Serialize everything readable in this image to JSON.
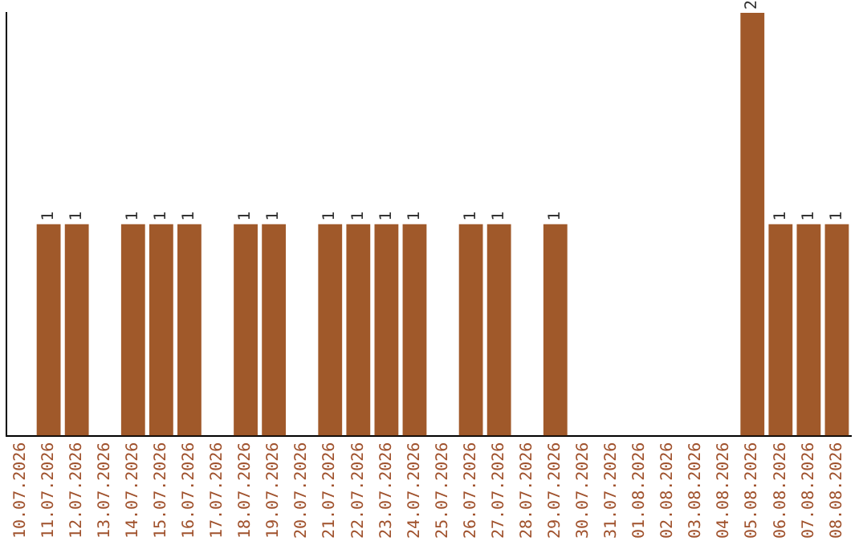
{
  "chart_data": {
    "type": "bar",
    "categories": [
      "10.07.2026",
      "11.07.2026",
      "12.07.2026",
      "13.07.2026",
      "14.07.2026",
      "15.07.2026",
      "16.07.2026",
      "17.07.2026",
      "18.07.2026",
      "19.07.2026",
      "20.07.2026",
      "21.07.2026",
      "22.07.2026",
      "23.07.2026",
      "24.07.2026",
      "25.07.2026",
      "26.07.2026",
      "27.07.2026",
      "28.07.2026",
      "29.07.2026",
      "30.07.2026",
      "31.07.2026",
      "01.08.2026",
      "02.08.2026",
      "03.08.2026",
      "04.08.2026",
      "05.08.2026",
      "06.08.2026",
      "07.08.2026",
      "08.08.2026"
    ],
    "values": [
      0,
      1,
      1,
      0,
      1,
      1,
      1,
      0,
      1,
      1,
      0,
      1,
      1,
      1,
      1,
      0,
      1,
      1,
      0,
      1,
      0,
      0,
      0,
      0,
      0,
      0,
      2,
      1,
      1,
      1
    ],
    "value_labels": [
      null,
      "1",
      "1",
      null,
      "1",
      "1",
      "1",
      null,
      "1",
      "1",
      null,
      "1",
      "1",
      "1",
      "1",
      null,
      "1",
      "1",
      null,
      "1",
      null,
      null,
      null,
      null,
      null,
      null,
      "2",
      "1",
      "1",
      "1"
    ],
    "color": "#a0592a",
    "grid": false,
    "legend": false,
    "tick_labels": "x"
  }
}
